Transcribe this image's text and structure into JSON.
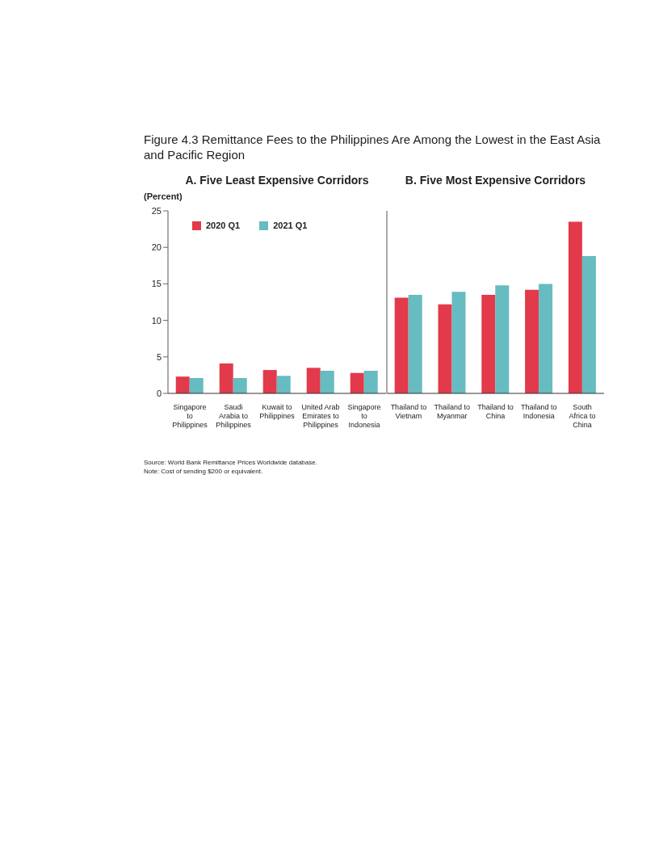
{
  "chart_data": [
    {
      "type": "bar",
      "title": "Figure 4.3 Remittance Fees to the Philippines Are Among the Lowest in the East Asia and Pacific Region",
      "subtitle": "A. Five Least Expensive Corridors",
      "ylabel": "(Percent)",
      "categories": [
        "Singapore to Philippines",
        "Saudi Arabia to Philippines",
        "Kuwait to Philippines",
        "United Arab Emirates to Philippines",
        "Singapore to Indonesia"
      ],
      "series": [
        {
          "name": "2020 Q1",
          "color": "#e23a4b",
          "values": [
            2.3,
            4.1,
            3.2,
            3.5,
            2.8
          ]
        },
        {
          "name": "2021 Q1",
          "color": "#66bcc0",
          "values": [
            2.1,
            2.1,
            2.4,
            3.1,
            3.1
          ]
        }
      ],
      "ylim": [
        0,
        25
      ],
      "yticks": [
        0,
        5,
        10,
        15,
        20,
        25
      ],
      "grid": false,
      "legend": "top left",
      "annotations": [
        "Source: World Bank Remittance Prices Worldwide database.",
        "Note: Cost of sending $200 or equivalent."
      ]
    },
    {
      "type": "bar",
      "subtitle": "B. Five Most Expensive Corridors",
      "categories": [
        "Thailand to Vietnam",
        "Thailand to Myanmar",
        "Thailand to China",
        "Thailand to Indonesia",
        "South Africa to China"
      ],
      "series": [
        {
          "color": "#e23a4b",
          "values": [
            13.1,
            12.2,
            13.5,
            14.2,
            23.5
          ]
        },
        {
          "color": "#66bcc0",
          "values": [
            13.5,
            13.9,
            14.8,
            15.0,
            18.8
          ]
        }
      ],
      "ylim": [
        0,
        25
      ],
      "yticks": [
        0,
        5,
        10,
        15,
        20,
        25
      ],
      "grid": false,
      "legend": false,
      "tick_labels": "x"
    }
  ]
}
